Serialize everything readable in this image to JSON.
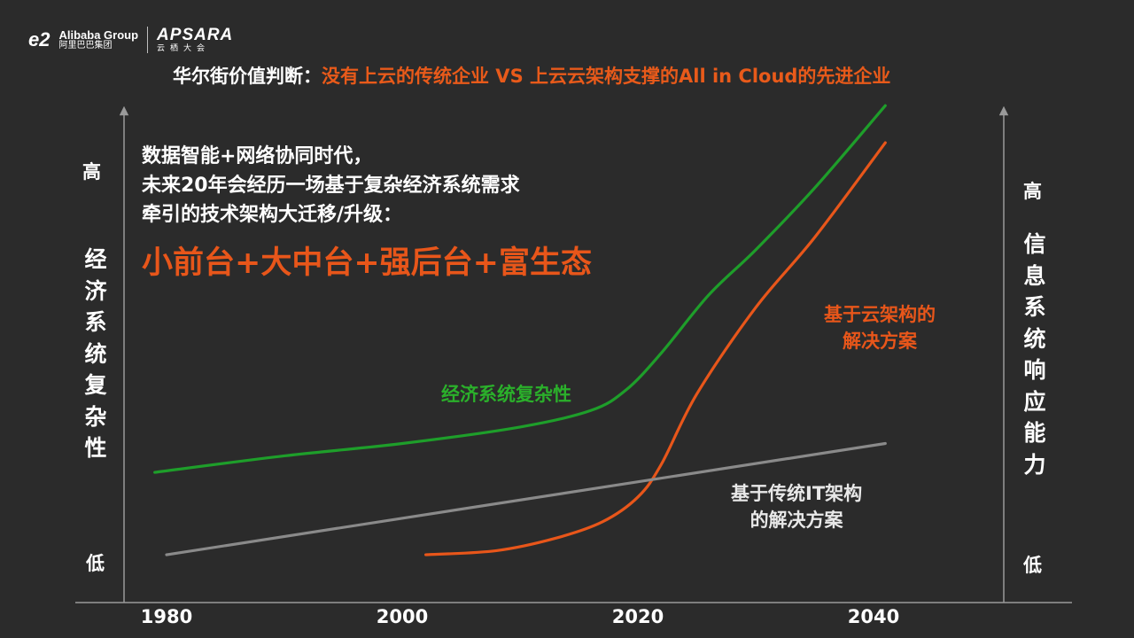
{
  "header": {
    "logo_mark": "e2",
    "logo_en": "Alibaba Group",
    "logo_cn": "阿里巴巴集团",
    "apsara_en": "APSARA",
    "apsara_cn": "云栖大会"
  },
  "title": {
    "prefix": "华尔街价值判断：",
    "highlight": "没有上云的传统企业 VS 上云云架构支撑的All in Cloud的先进企业"
  },
  "left_axis": {
    "label": "经济系统复杂性",
    "high": "高",
    "low": "低"
  },
  "right_axis": {
    "label": "信息系统响应能力",
    "high": "高",
    "low": "低"
  },
  "description": {
    "line1": "数据智能+网络协同时代，",
    "line2": "未来20年会经历一场基于复杂经济系统需求",
    "line3": "牵引的技术架构大迁移/升级：",
    "emphasis": "小前台+大中台+强后台+富生态"
  },
  "annotations": {
    "green": "经济系统复杂性",
    "orange_line1": "基于云架构的",
    "orange_line2": "解决方案",
    "gray_line1": "基于传统IT架构",
    "gray_line2": "的解决方案"
  },
  "chart_data": {
    "type": "line",
    "x_ticks": [
      "1980",
      "2000",
      "2020",
      "2040"
    ],
    "xlim": [
      1975,
      2042
    ],
    "ylim": [
      0,
      100
    ],
    "series": [
      {
        "name": "经济系统复杂性",
        "color": "#1e9e2a",
        "x": [
          1979,
          1990,
          2000,
          2010,
          2016,
          2019,
          2022,
          2026,
          2030,
          2035,
          2041
        ],
        "y": [
          23,
          27,
          30,
          34,
          38,
          43,
          52,
          66,
          77,
          92,
          112
        ]
      },
      {
        "name": "基于云架构的解决方案",
        "color": "#e8561a",
        "x": [
          2002,
          2008,
          2013,
          2017,
          2020,
          2022,
          2025,
          2030,
          2035,
          2041
        ],
        "y": [
          3,
          4,
          7,
          11,
          17,
          25,
          42,
          63,
          80,
          103
        ]
      },
      {
        "name": "基于传统IT架构的解决方案",
        "color": "#8a8a8a",
        "x": [
          1980,
          2041
        ],
        "y": [
          3,
          30
        ]
      }
    ]
  }
}
